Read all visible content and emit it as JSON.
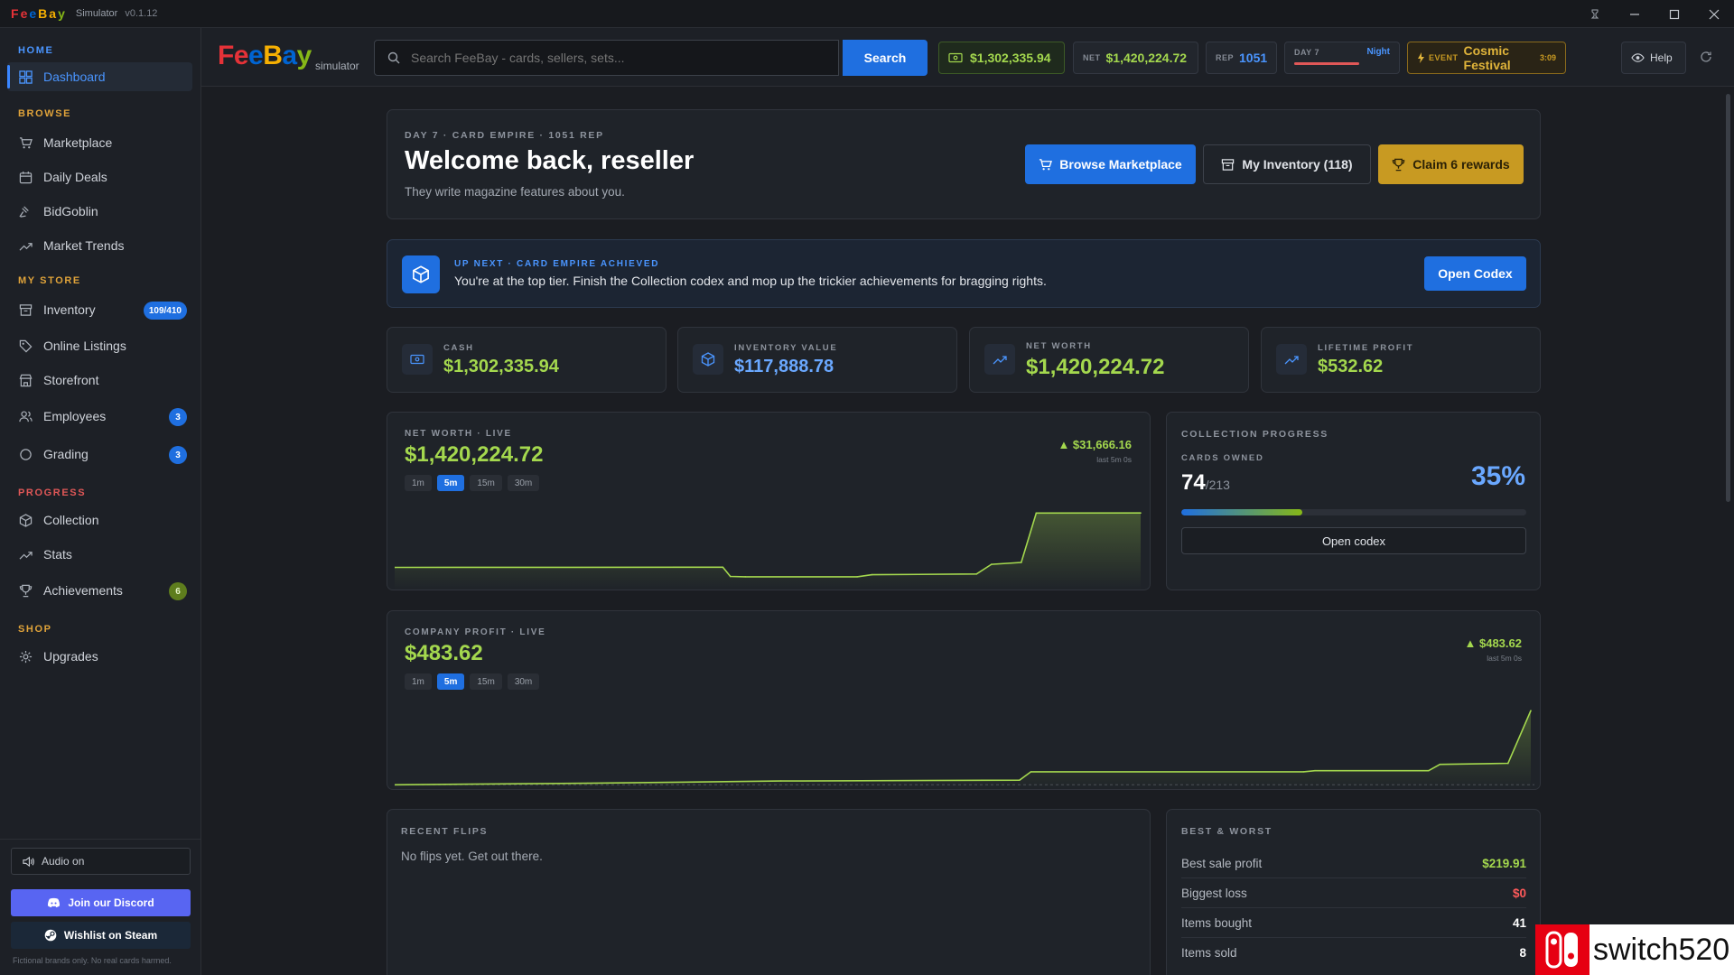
{
  "titlebar": {
    "logo_letters": [
      "F",
      "e",
      "e",
      "B",
      "a",
      "y"
    ],
    "app_name": "Simulator",
    "version": "v0.1.12"
  },
  "colors": {
    "accent_blue": "#1f6fe0",
    "positive_green": "#a4d84e",
    "negative_red": "#ff5a5a",
    "gold": "#c89a22",
    "logo": [
      "#e53238",
      "#0064d2",
      "#f5af02",
      "#86b817"
    ]
  },
  "sidebar": {
    "sections": [
      {
        "label": "HOME",
        "color": "#4a95ff"
      },
      {
        "label": "BROWSE",
        "color": "#e0a33a"
      },
      {
        "label": "MY STORE",
        "color": "#e0a33a"
      },
      {
        "label": "PROGRESS",
        "color": "#e05757"
      },
      {
        "label": "SHOP",
        "color": "#e0a33a"
      }
    ],
    "items": [
      {
        "label": "Dashboard",
        "icon": "grid-icon",
        "active": true
      },
      {
        "label": "Marketplace",
        "icon": "cart-icon"
      },
      {
        "label": "Daily Deals",
        "icon": "calendar-icon"
      },
      {
        "label": "BidGoblin",
        "icon": "gavel-icon"
      },
      {
        "label": "Market Trends",
        "icon": "trend-icon"
      },
      {
        "label": "Inventory",
        "icon": "box-icon",
        "badge": "109/410"
      },
      {
        "label": "Online Listings",
        "icon": "tag-icon"
      },
      {
        "label": "Storefront",
        "icon": "store-icon"
      },
      {
        "label": "Employees",
        "icon": "users-icon",
        "badge": "3"
      },
      {
        "label": "Grading",
        "icon": "circle-icon",
        "badge": "3"
      },
      {
        "label": "Collection",
        "icon": "cube-icon"
      },
      {
        "label": "Stats",
        "icon": "trend-icon"
      },
      {
        "label": "Achievements",
        "icon": "trophy-icon",
        "badge": "6"
      },
      {
        "label": "Upgrades",
        "icon": "gear-icon"
      }
    ],
    "audio_label": "Audio on",
    "discord_label": "Join our Discord",
    "steam_label": "Wishlist on Steam",
    "footer": "Fictional brands only. No real cards harmed."
  },
  "header": {
    "logo_sub": "simulator",
    "search_placeholder": "Search FeeBay - cards, sellers, sets...",
    "search_button": "Search",
    "cash": "$1,302,335.94",
    "net_label": "NET",
    "net": "$1,420,224.72",
    "rep_label": "REP",
    "rep": "1051",
    "day_label": "DAY 7",
    "time_of_day": "Night",
    "event_label": "EVENT",
    "event_name": "Cosmic Festival",
    "event_timer": "3:09",
    "help_label": "Help"
  },
  "welcome": {
    "eyebrow": "DAY 7 · CARD EMPIRE · 1051 REP",
    "title": "Welcome back, reseller",
    "subtitle": "They write magazine features about you.",
    "browse_btn": "Browse Marketplace",
    "inventory_btn": "My Inventory (118)",
    "rewards_btn": "Claim 6 rewards"
  },
  "upnext": {
    "eyebrow": "UP NEXT · CARD EMPIRE ACHIEVED",
    "text": "You're at the top tier. Finish the Collection codex and mop up the trickier achievements for bragging rights.",
    "button": "Open Codex"
  },
  "stats": [
    {
      "label": "CASH",
      "value": "$1,302,335.94",
      "icon": "cash-icon"
    },
    {
      "label": "INVENTORY VALUE",
      "value": "$117,888.78",
      "icon": "cube-icon"
    },
    {
      "label": "NET WORTH",
      "value": "$1,420,224.72",
      "icon": "trend-icon"
    },
    {
      "label": "LIFETIME PROFIT",
      "value": "$532.62",
      "icon": "trend-icon"
    }
  ],
  "networth_chart": {
    "caption": "NET WORTH · LIVE",
    "value": "$1,420,224.72",
    "delta": "▲ $31,666.16",
    "delta_note": "last 5m 0s",
    "ranges": [
      "1m",
      "5m",
      "15m",
      "30m"
    ],
    "selected_range": "5m"
  },
  "profit_chart": {
    "caption": "COMPANY PROFIT · LIVE",
    "value": "$483.62",
    "delta": "▲ $483.62",
    "delta_note": "last 5m 0s",
    "ranges": [
      "1m",
      "5m",
      "15m",
      "30m"
    ],
    "selected_range": "5m"
  },
  "chart_data": [
    {
      "type": "area",
      "title": "NET WORTH · LIVE",
      "x": [
        0,
        0.44,
        0.45,
        0.47,
        0.62,
        0.64,
        0.78,
        0.8,
        0.84,
        0.86,
        1.0
      ],
      "values": [
        1388700,
        1388800,
        1383500,
        1383300,
        1383300,
        1384500,
        1384900,
        1390500,
        1391600,
        1420200,
        1420224.72
      ],
      "ylim": [
        1378000,
        1424000
      ]
    },
    {
      "type": "area",
      "title": "COMPANY PROFIT · LIVE",
      "x": [
        0,
        0.17,
        0.34,
        0.55,
        0.56,
        0.8,
        0.81,
        0.91,
        0.92,
        0.98,
        1.0
      ],
      "values": [
        0,
        10,
        25,
        30,
        85,
        85,
        92,
        92,
        133,
        140,
        483.62
      ],
      "ylim": [
        -10,
        520
      ]
    }
  ],
  "collection": {
    "caption": "COLLECTION PROGRESS",
    "owned_label": "CARDS OWNED",
    "owned": "74",
    "total": "/213",
    "percent": "35%",
    "progress": 0.35,
    "button": "Open codex"
  },
  "flips": {
    "caption": "RECENT FLIPS",
    "empty": "No flips yet. Get out there."
  },
  "bestworst": {
    "caption": "BEST & WORST",
    "rows": [
      {
        "label": "Best sale profit",
        "value": "$219.91",
        "tone": "green"
      },
      {
        "label": "Biggest loss",
        "value": "$0",
        "tone": "red"
      },
      {
        "label": "Items bought",
        "value": "41",
        "tone": "white"
      },
      {
        "label": "Items sold",
        "value": "8",
        "tone": "white"
      }
    ]
  },
  "watermark": "switch520"
}
